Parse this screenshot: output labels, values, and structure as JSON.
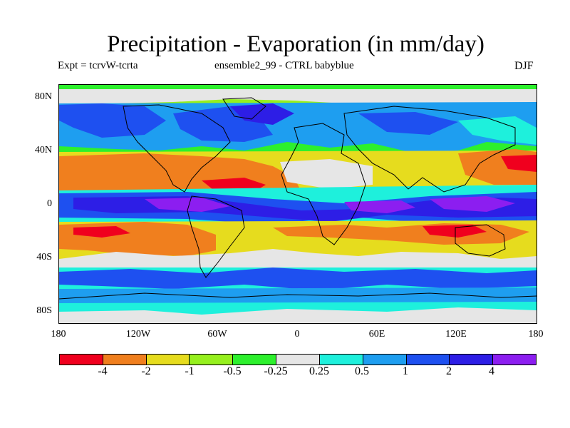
{
  "title": "Precipitation - Evaporation (in mm/day)",
  "subtitle_left": "Expt = tcrvW-tcrta",
  "subtitle_center": "ensemble2_99 - CTRL babyblue",
  "subtitle_right": "DJF",
  "y_axis": [
    "80N",
    "40N",
    "0",
    "40S",
    "80S"
  ],
  "x_axis": [
    "180",
    "120W",
    "60W",
    "0",
    "60E",
    "120E",
    "180"
  ],
  "colorbar": {
    "colors": [
      "#f0001e",
      "#f07f1e",
      "#e6dc1e",
      "#96f01e",
      "#2df02d",
      "#e6e6e6",
      "#1ef0dc",
      "#1e9ef0",
      "#1e50f0",
      "#2d1ee6",
      "#8c1ef0"
    ],
    "labels": [
      "-4",
      "-2",
      "-1",
      "-0.5",
      "-0.25",
      "0.25",
      "0.5",
      "1",
      "2",
      "4"
    ]
  },
  "map_palette": {
    "red": "#f0001e",
    "orange": "#f07f1e",
    "yellow": "#e6dc1e",
    "lime": "#96f01e",
    "green": "#2df02d",
    "gray": "#e6e6e6",
    "cyan": "#1ef0dc",
    "sky": "#1e9ef0",
    "blue": "#1e50f0",
    "indigo": "#2d1ee6",
    "violet": "#8c1ef0"
  }
}
